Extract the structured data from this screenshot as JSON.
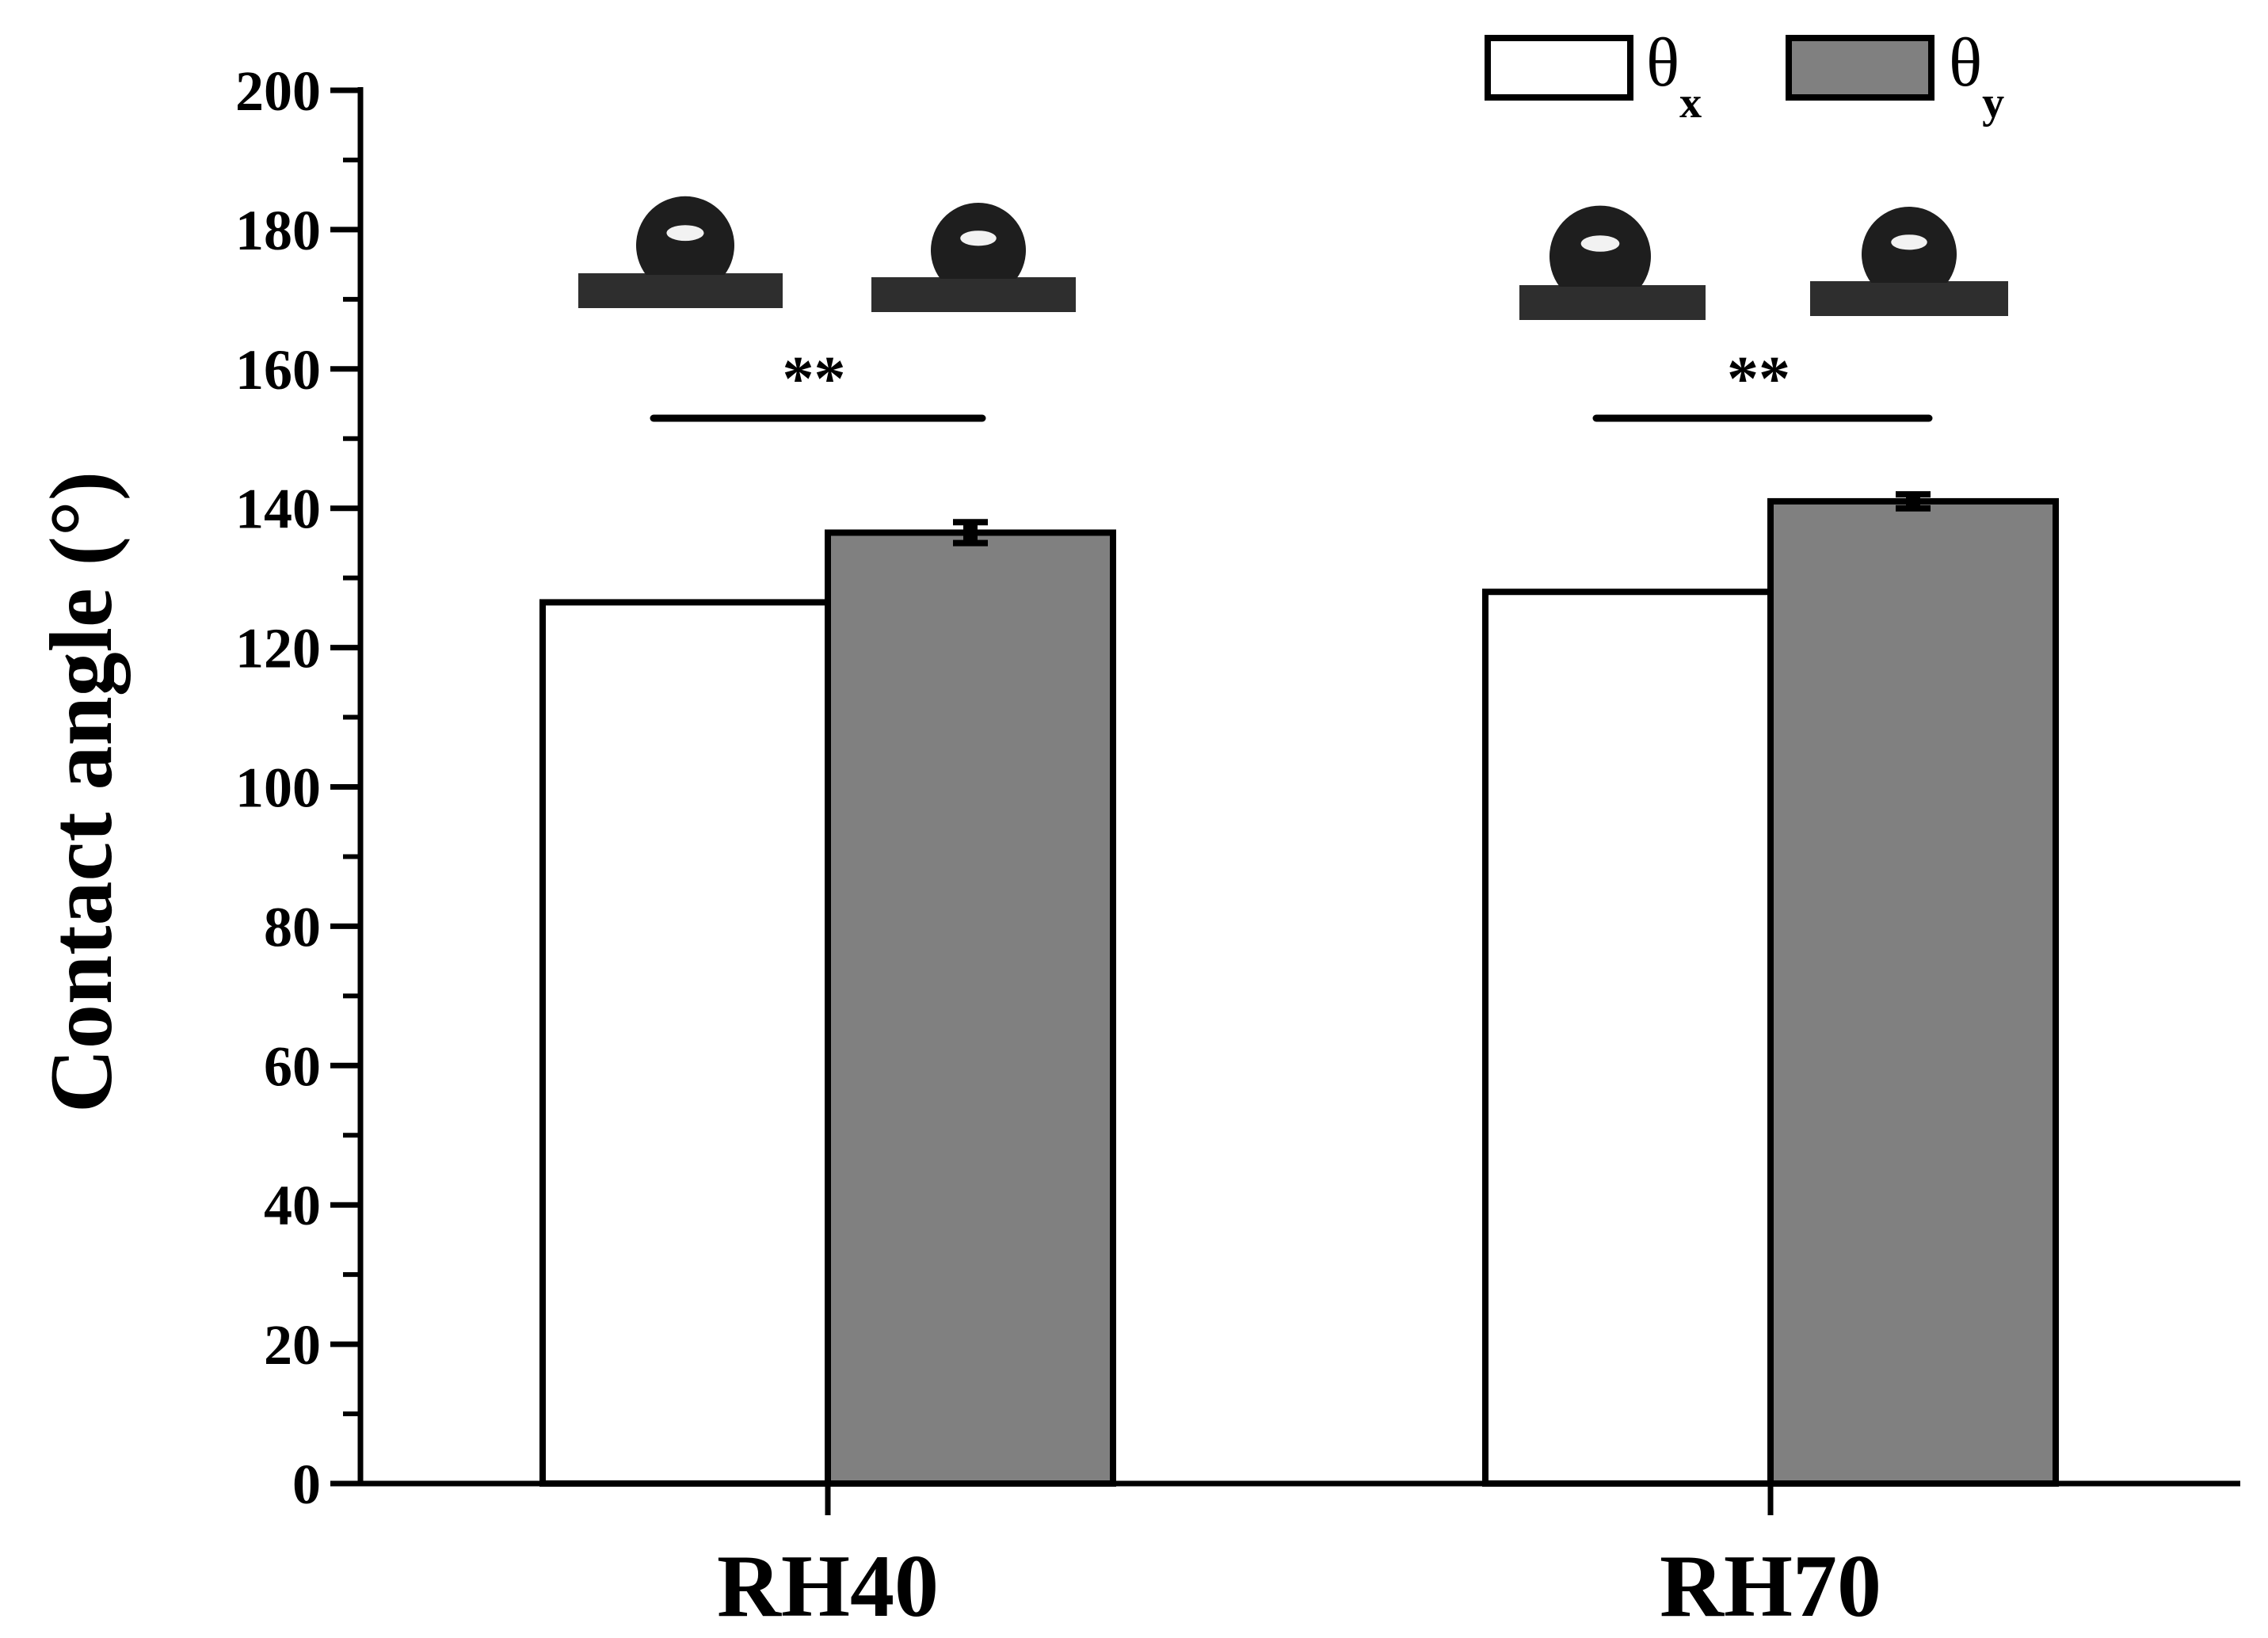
{
  "chart_data": {
    "type": "bar",
    "categories": [
      "RH40",
      "RH70"
    ],
    "series": [
      {
        "name": "θ",
        "subscript": "x",
        "values": [
          126.5,
          128
        ],
        "errors": [
          0,
          0
        ],
        "color": "#ffffff"
      },
      {
        "name": "θ",
        "subscript": "y",
        "values": [
          136.5,
          141
        ],
        "errors": [
          1.5,
          1
        ],
        "color": "#808080"
      }
    ],
    "ylabel": "Contact angle (°)",
    "xlabel": "",
    "ylim": [
      0,
      200
    ],
    "yticks": [
      "0",
      "20",
      "40",
      "60",
      "80",
      "100",
      "120",
      "140",
      "160",
      "180",
      "200"
    ],
    "significance": [
      "**",
      "**"
    ],
    "legend_position": "top-right",
    "grid": false,
    "insets": "water-droplet-photos"
  }
}
